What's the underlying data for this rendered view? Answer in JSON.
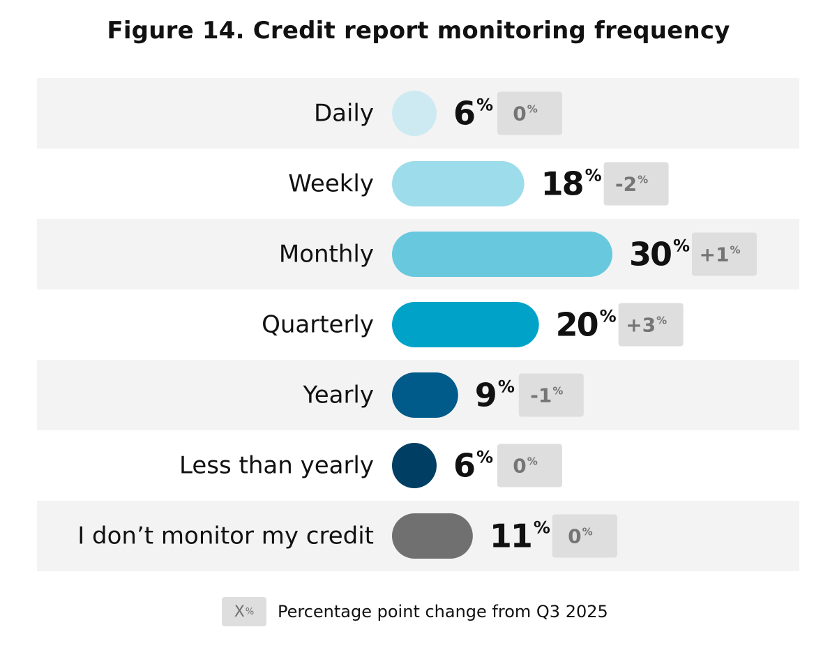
{
  "title": "Figure 14. Credit report monitoring frequency",
  "colors": {
    "band": "#f3f3f3",
    "badge_bg": "#dedede",
    "badge_text": "#757575"
  },
  "chart_data": {
    "type": "bar",
    "orientation": "horizontal",
    "title": "Figure 14. Credit report monitoring frequency",
    "unit": "%",
    "categories": [
      "Daily",
      "Weekly",
      "Monthly",
      "Quarterly",
      "Yearly",
      "Less than yearly",
      "I don’t monitor my credit"
    ],
    "values": [
      6,
      18,
      30,
      20,
      9,
      6,
      11
    ],
    "changes": [
      "0",
      "-2",
      "+1",
      "+3",
      "-1",
      "0",
      "0"
    ],
    "bar_colors": [
      "#cdeaf2",
      "#9ddcea",
      "#68c8de",
      "#00a3c7",
      "#005a8a",
      "#003f63",
      "#707070"
    ],
    "xlim": [
      0,
      30
    ],
    "grid": false,
    "legend": {
      "swatch_label": "X",
      "swatch_unit": "%",
      "text": "Percentage point change from Q3 2025",
      "position": "bottom-center"
    }
  }
}
